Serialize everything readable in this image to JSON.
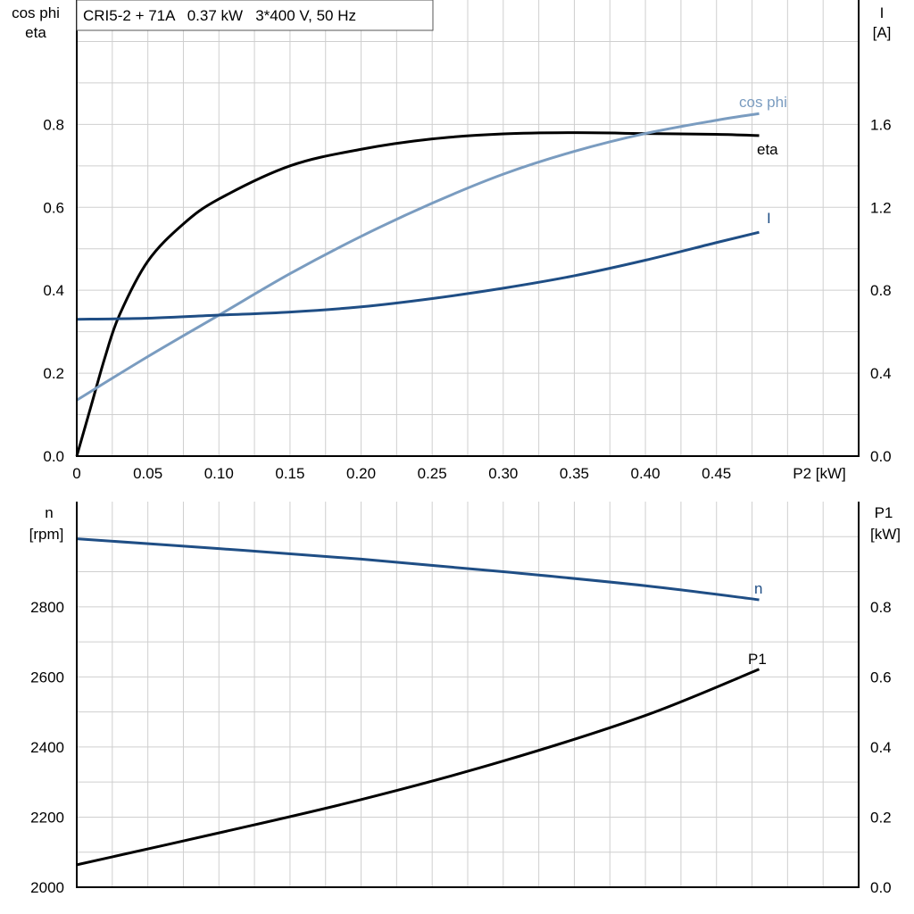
{
  "chart_data": [
    {
      "type": "line",
      "title": "CRI5-2 + 71A   0.37 kW   3*400 V, 50 Hz",
      "xlabel": "P2 [kW]",
      "ylabel_left": [
        "cos phi",
        "eta"
      ],
      "ylabel_right": [
        "I",
        "[A]"
      ],
      "xlim": [
        0,
        0.55
      ],
      "ylim_left": [
        0,
        1.1
      ],
      "ylim_right": [
        0,
        2.2
      ],
      "grid": true,
      "x_ticks": [
        "0",
        "0.05",
        "0.10",
        "0.15",
        "0.20",
        "0.25",
        "0.30",
        "0.35",
        "0.40",
        "0.45"
      ],
      "y_ticks_left": [
        "0.0",
        "0.2",
        "0.4",
        "0.6",
        "0.8"
      ],
      "y_ticks_right": [
        "0.0",
        "0.4",
        "0.8",
        "1.2",
        "1.6"
      ],
      "series": [
        {
          "name": "eta",
          "axis": "left",
          "color": "#000000",
          "x": [
            0,
            0.01,
            0.02,
            0.03,
            0.05,
            0.075,
            0.1,
            0.15,
            0.2,
            0.25,
            0.3,
            0.35,
            0.4,
            0.45,
            0.48
          ],
          "y": [
            0,
            0.12,
            0.24,
            0.34,
            0.47,
            0.56,
            0.62,
            0.7,
            0.74,
            0.765,
            0.777,
            0.78,
            0.778,
            0.776,
            0.773
          ]
        },
        {
          "name": "cos phi",
          "axis": "left",
          "color": "#7a9cc0",
          "x": [
            0,
            0.05,
            0.1,
            0.15,
            0.2,
            0.25,
            0.3,
            0.35,
            0.4,
            0.45,
            0.48
          ],
          "y": [
            0.135,
            0.24,
            0.34,
            0.44,
            0.53,
            0.61,
            0.68,
            0.735,
            0.778,
            0.81,
            0.826
          ]
        },
        {
          "name": "I",
          "axis": "right",
          "color": "#1f4e85",
          "x": [
            0,
            0.05,
            0.1,
            0.15,
            0.2,
            0.25,
            0.3,
            0.35,
            0.4,
            0.45,
            0.48
          ],
          "y": [
            0.66,
            0.665,
            0.68,
            0.695,
            0.72,
            0.76,
            0.81,
            0.87,
            0.945,
            1.03,
            1.08
          ]
        }
      ]
    },
    {
      "type": "line",
      "xlim": [
        0,
        0.55
      ],
      "ylabel_left": [
        "n",
        "[rpm]"
      ],
      "ylabel_right": [
        "P1",
        "[kW]"
      ],
      "ylim_left": [
        2000,
        3100
      ],
      "ylim_right": [
        0,
        1.1
      ],
      "grid": true,
      "y_ticks_left": [
        "2000",
        "2200",
        "2400",
        "2600",
        "2800"
      ],
      "y_ticks_right": [
        "0.0",
        "0.2",
        "0.4",
        "0.6",
        "0.8"
      ],
      "series": [
        {
          "name": "n",
          "axis": "left",
          "color": "#1f4e85",
          "x": [
            0,
            0.1,
            0.2,
            0.3,
            0.4,
            0.48
          ],
          "y": [
            2994,
            2966,
            2936,
            2900,
            2860,
            2820
          ]
        },
        {
          "name": "P1",
          "axis": "right",
          "color": "#000000",
          "x": [
            0,
            0.1,
            0.2,
            0.3,
            0.4,
            0.48
          ],
          "y": [
            0.064,
            0.155,
            0.25,
            0.36,
            0.49,
            0.622
          ]
        }
      ]
    }
  ]
}
